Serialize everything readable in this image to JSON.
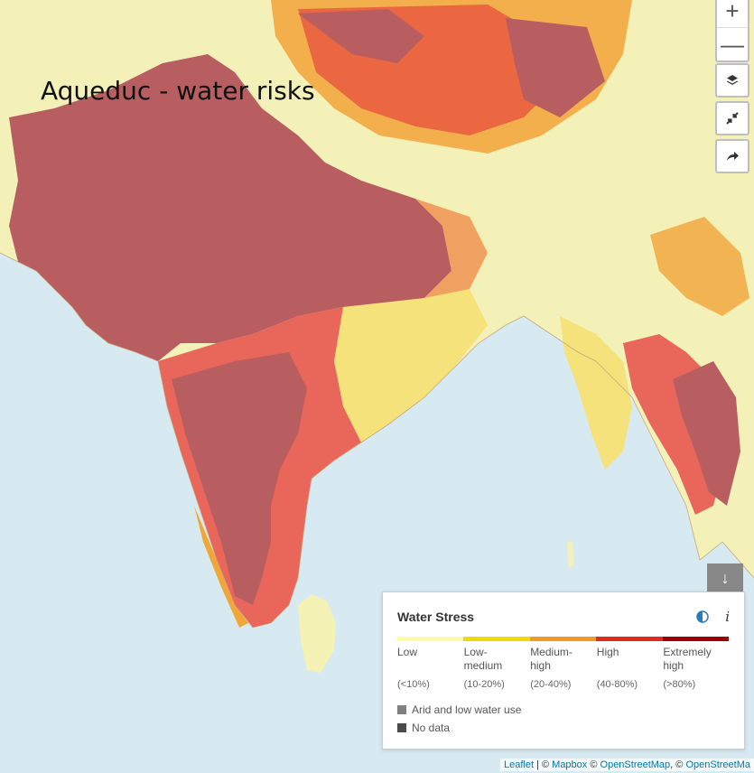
{
  "map": {
    "title": "Aqueduc - water risks"
  },
  "controls": {
    "zoom_in": "+",
    "zoom_out": "—",
    "layers_icon": "layers-icon",
    "collapse_icon": "collapse-icon",
    "share_icon": "share-icon"
  },
  "legend": {
    "title": "Water Stress",
    "toggle_label": "↓",
    "info_label": "i",
    "categories": [
      {
        "label": "Low",
        "range": "(<10%)",
        "color": "#fefaa8"
      },
      {
        "label": "Low-medium",
        "range": "(10-20%)",
        "color": "#f5d800"
      },
      {
        "label": "Medium-high",
        "range": "(20-40%)",
        "color": "#f19a27"
      },
      {
        "label": "High",
        "range": "(40-80%)",
        "color": "#e22a19"
      },
      {
        "label": "Extremely high",
        "range": "(>80%)",
        "color": "#990000"
      }
    ],
    "extras": [
      {
        "label": "Arid and low water use",
        "color": "#808080"
      },
      {
        "label": "No data",
        "color": "#4a4a4a"
      }
    ]
  },
  "attribution": {
    "leaflet": "Leaflet",
    "sep": " | © ",
    "mapbox": "Mapbox",
    "sep2": " © ",
    "osm": "OpenStreetMap",
    "sep3": ", © ",
    "osm2": "OpenStreetMa"
  }
}
